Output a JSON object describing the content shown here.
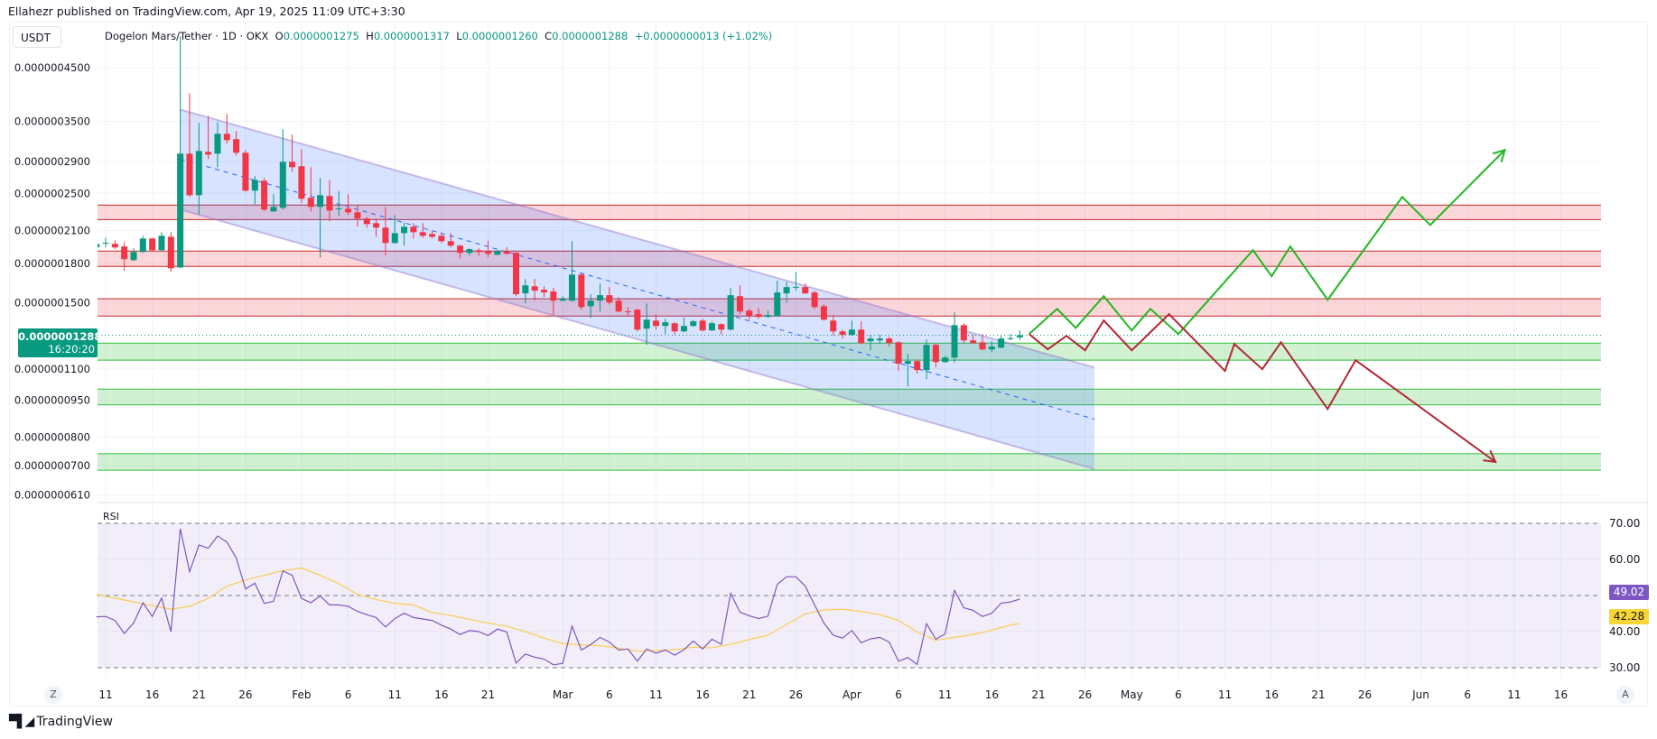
{
  "header": {
    "published": "Ellahezr published on TradingView.com, Apr 19, 2025 11:09 UTC+3:30"
  },
  "currency_button": "USDT",
  "legend": {
    "symbol": "Dogelon Mars/Tether · 1D · OKX",
    "open_label": "O",
    "open": "0.0000001275",
    "high_label": "H",
    "high": "0.0000001317",
    "low_label": "L",
    "low": "0.0000001260",
    "close_label": "C",
    "close": "0.0000001288",
    "change": "+0.0000000013 (+1.02%)"
  },
  "last_price": {
    "value": "0.0000001288",
    "countdown": "16:20:20"
  },
  "rsi": {
    "label": "RSI",
    "value_badge": "49.02",
    "ma_badge": "42.28"
  },
  "buttons": {
    "zoom_left": "Z",
    "auto_scale": "A"
  },
  "logo": "TradingView",
  "colors": {
    "up": "#089981",
    "down": "#f23645",
    "rsi": "#7e57c2",
    "rsi_ma": "#f7d05e",
    "bull_path": "#22b822",
    "bear_path": "#b22833",
    "resistance": "#c62828",
    "support": "#2fbf3a",
    "channel": "#2962ff"
  },
  "chart_data": {
    "type": "candlestick",
    "price_unit": "1e-10 USDT",
    "x_unit": "days since Jan 11 2025",
    "price_ticks": [
      {
        "v": 4500,
        "label": "0.0000004500"
      },
      {
        "v": 3500,
        "label": "0.0000003500"
      },
      {
        "v": 2900,
        "label": "0.0000002900"
      },
      {
        "v": 2500,
        "label": "0.0000002500"
      },
      {
        "v": 2100,
        "label": "0.0000002100"
      },
      {
        "v": 1800,
        "label": "0.0000001800"
      },
      {
        "v": 1500,
        "label": "0.0000001500"
      },
      {
        "v": 1100,
        "label": "0.0000001100"
      },
      {
        "v": 950,
        "label": "0.0000000950"
      },
      {
        "v": 800,
        "label": "0.0000000800"
      },
      {
        "v": 700,
        "label": "0.0000000700"
      },
      {
        "v": 610,
        "label": "0.0000000610"
      }
    ],
    "time_ticks": [
      {
        "d": 0,
        "label": "11"
      },
      {
        "d": 5,
        "label": "16"
      },
      {
        "d": 10,
        "label": "21"
      },
      {
        "d": 15,
        "label": "26"
      },
      {
        "d": 21,
        "label": "Feb"
      },
      {
        "d": 26,
        "label": "6"
      },
      {
        "d": 31,
        "label": "11"
      },
      {
        "d": 36,
        "label": "16"
      },
      {
        "d": 41,
        "label": "21"
      },
      {
        "d": 49,
        "label": "Mar"
      },
      {
        "d": 54,
        "label": "6"
      },
      {
        "d": 59,
        "label": "11"
      },
      {
        "d": 64,
        "label": "16"
      },
      {
        "d": 69,
        "label": "21"
      },
      {
        "d": 74,
        "label": "26"
      },
      {
        "d": 80,
        "label": "Apr"
      },
      {
        "d": 85,
        "label": "6"
      },
      {
        "d": 90,
        "label": "11"
      },
      {
        "d": 95,
        "label": "16"
      },
      {
        "d": 100,
        "label": "21"
      },
      {
        "d": 105,
        "label": "26"
      },
      {
        "d": 110,
        "label": "May"
      },
      {
        "d": 115,
        "label": "6"
      },
      {
        "d": 120,
        "label": "11"
      },
      {
        "d": 125,
        "label": "16"
      },
      {
        "d": 130,
        "label": "21"
      },
      {
        "d": 135,
        "label": "26"
      },
      {
        "d": 141,
        "label": "Jun"
      },
      {
        "d": 146,
        "label": "6"
      },
      {
        "d": 151,
        "label": "11"
      },
      {
        "d": 156,
        "label": "16"
      }
    ],
    "first_candle_day": -1,
    "candles_ohlc": [
      [
        1942,
        1990,
        1926,
        1974
      ],
      [
        1980,
        2033,
        1942,
        1985
      ],
      [
        1974,
        2006,
        1926,
        1942
      ],
      [
        1950,
        1990,
        1739,
        1838
      ],
      [
        1830,
        1933,
        1822,
        1901
      ],
      [
        1901,
        2050,
        1893,
        2024
      ],
      [
        2024,
        2033,
        1909,
        1917
      ],
      [
        1917,
        2085,
        1909,
        2050
      ],
      [
        2041,
        2085,
        1732,
        1761
      ],
      [
        1768,
        5215,
        1761,
        3010
      ],
      [
        3010,
        3993,
        2458,
        2479
      ],
      [
        2479,
        3474,
        2268,
        3048
      ],
      [
        3035,
        3593,
        2934,
        2997
      ],
      [
        3010,
        3489,
        2826,
        3303
      ],
      [
        3303,
        3624,
        3153,
        3207
      ],
      [
        3221,
        3345,
        2984,
        3023
      ],
      [
        3023,
        3061,
        2521,
        2532
      ],
      [
        2532,
        2709,
        2375,
        2663
      ],
      [
        2652,
        2686,
        2298,
        2318
      ],
      [
        2298,
        2490,
        2290,
        2347
      ],
      [
        2337,
        3374,
        2318,
        2898
      ],
      [
        2898,
        3289,
        2767,
        2826
      ],
      [
        2838,
        3074,
        2388,
        2438
      ],
      [
        2448,
        2826,
        2298,
        2347
      ],
      [
        2347,
        2686,
        1853,
        2479
      ],
      [
        2469,
        2663,
        2194,
        2308
      ],
      [
        2320,
        2532,
        2250,
        2330
      ],
      [
        2327,
        2490,
        2259,
        2288
      ],
      [
        2288,
        2368,
        2139,
        2222
      ],
      [
        2222,
        2240,
        2130,
        2166
      ],
      [
        2175,
        2222,
        2041,
        2130
      ],
      [
        2130,
        2347,
        1869,
        1982
      ],
      [
        1982,
        2259,
        1975,
        2076
      ],
      [
        2076,
        2184,
        1958,
        2139
      ],
      [
        2139,
        2175,
        2024,
        2085
      ],
      [
        2085,
        2175,
        2033,
        2050
      ],
      [
        2067,
        2094,
        2024,
        2041
      ],
      [
        2050,
        2085,
        1982,
        1999
      ],
      [
        1999,
        2076,
        1942,
        1958
      ],
      [
        1958,
        1966,
        1845,
        1893
      ],
      [
        1893,
        1933,
        1869,
        1926
      ],
      [
        1917,
        1933,
        1869,
        1901
      ],
      [
        1909,
        2006,
        1853,
        1885
      ],
      [
        1877,
        1917,
        1870,
        1909
      ],
      [
        1909,
        1942,
        1877,
        1885
      ],
      [
        1893,
        1901,
        1546,
        1560
      ],
      [
        1566,
        1675,
        1494,
        1626
      ],
      [
        1619,
        1675,
        1514,
        1586
      ],
      [
        1593,
        1619,
        1540,
        1573
      ],
      [
        1580,
        1606,
        1415,
        1514
      ],
      [
        1514,
        1546,
        1508,
        1527
      ],
      [
        1514,
        1999,
        1508,
        1710
      ],
      [
        1710,
        1717,
        1451,
        1469
      ],
      [
        1475,
        1560,
        1397,
        1514
      ],
      [
        1514,
        1640,
        1439,
        1553
      ],
      [
        1553,
        1613,
        1488,
        1501
      ],
      [
        1514,
        1540,
        1433,
        1439
      ],
      [
        1440,
        1469,
        1409,
        1438
      ],
      [
        1451,
        1457,
        1311,
        1322
      ],
      [
        1328,
        1494,
        1231,
        1385
      ],
      [
        1379,
        1421,
        1322,
        1345
      ],
      [
        1345,
        1391,
        1295,
        1368
      ],
      [
        1362,
        1368,
        1290,
        1311
      ],
      [
        1311,
        1397,
        1306,
        1345
      ],
      [
        1345,
        1385,
        1339,
        1374
      ],
      [
        1379,
        1391,
        1311,
        1317
      ],
      [
        1317,
        1374,
        1312,
        1362
      ],
      [
        1356,
        1362,
        1290,
        1322
      ],
      [
        1322,
        1606,
        1318,
        1553
      ],
      [
        1546,
        1626,
        1421,
        1439
      ],
      [
        1445,
        1457,
        1385,
        1409
      ],
      [
        1421,
        1463,
        1391,
        1403
      ],
      [
        1403,
        1445,
        1397,
        1415
      ],
      [
        1409,
        1661,
        1405,
        1573
      ],
      [
        1566,
        1654,
        1501,
        1613
      ],
      [
        1610,
        1732,
        1586,
        1615
      ],
      [
        1613,
        1640,
        1562,
        1566
      ],
      [
        1573,
        1586,
        1457,
        1469
      ],
      [
        1475,
        1488,
        1379,
        1385
      ],
      [
        1379,
        1415,
        1285,
        1311
      ],
      [
        1311,
        1322,
        1268,
        1290
      ],
      [
        1290,
        1379,
        1286,
        1322
      ],
      [
        1322,
        1374,
        1236,
        1241
      ],
      [
        1252,
        1290,
        1200,
        1268
      ],
      [
        1257,
        1290,
        1236,
        1268
      ],
      [
        1268,
        1279,
        1221,
        1241
      ],
      [
        1246,
        1252,
        1089,
        1127
      ],
      [
        1127,
        1180,
        1014,
        1141
      ],
      [
        1141,
        1151,
        1076,
        1094
      ],
      [
        1094,
        1263,
        1049,
        1231
      ],
      [
        1231,
        1241,
        1108,
        1136
      ],
      [
        1136,
        1170,
        1132,
        1160
      ],
      [
        1160,
        1433,
        1134,
        1350
      ],
      [
        1350,
        1362,
        1241,
        1257
      ],
      [
        1257,
        1290,
        1236,
        1241
      ],
      [
        1246,
        1295,
        1200,
        1205
      ],
      [
        1205,
        1252,
        1190,
        1221
      ],
      [
        1215,
        1284,
        1212,
        1268
      ],
      [
        1268,
        1295,
        1257,
        1270
      ],
      [
        1275,
        1317,
        1260,
        1288
      ]
    ],
    "last_close": 1288,
    "resistance_zones": [
      [
        2212,
        2367
      ],
      [
        1777,
        1909
      ],
      [
        1409,
        1527
      ]
    ],
    "support_zones": [
      [
        1146,
        1241
      ],
      [
        930,
        1001
      ],
      [
        685,
        740
      ]
    ],
    "channel": {
      "start_day": 8,
      "end_day": 106,
      "upper": [
        3700,
        1108
      ],
      "middle": [
        2935,
        870
      ],
      "lower": [
        2318,
        689
      ]
    },
    "bullish_projection": [
      [
        99,
        1295
      ],
      [
        102,
        1457
      ],
      [
        104,
        1333
      ],
      [
        107,
        1546
      ],
      [
        110,
        1317
      ],
      [
        112,
        1457
      ],
      [
        115,
        1295
      ],
      [
        123,
        1917
      ],
      [
        125,
        1697
      ],
      [
        127,
        1950
      ],
      [
        131,
        1520
      ],
      [
        139,
        2458
      ],
      [
        142,
        2157
      ],
      [
        150,
        3062
      ]
    ],
    "bearish_projection": [
      [
        99,
        1295
      ],
      [
        101,
        1206
      ],
      [
        103,
        1284
      ],
      [
        105,
        1200
      ],
      [
        107,
        1380
      ],
      [
        110,
        1200
      ],
      [
        114,
        1421
      ],
      [
        120,
        1090
      ],
      [
        121,
        1236
      ],
      [
        124,
        1099
      ],
      [
        126,
        1246
      ],
      [
        131,
        912
      ],
      [
        134,
        1146
      ],
      [
        149,
        712
      ]
    ],
    "rsi": {
      "levels": [
        70,
        60,
        50,
        40,
        30
      ],
      "level_labels": [
        "70.00",
        "60.00",
        "50.00",
        "40.00",
        "30.00"
      ],
      "range": [
        30,
        70
      ],
      "values": [
        44.1,
        44.2,
        43.1,
        39.5,
        42.4,
        48.0,
        44.2,
        49.3,
        40.0,
        68.5,
        56.6,
        64.0,
        63.1,
        66.5,
        64.8,
        60.4,
        51.8,
        53.4,
        47.8,
        48.4,
        56.8,
        55.6,
        49.2,
        48.0,
        49.9,
        47.4,
        47.4,
        47.0,
        45.6,
        44.7,
        43.9,
        41.3,
        43.6,
        45.1,
        43.9,
        43.5,
        43.1,
        41.8,
        40.7,
        39.2,
        40.3,
        40.0,
        38.9,
        40.7,
        39.9,
        31.3,
        33.8,
        32.9,
        32.4,
        30.8,
        31.2,
        41.5,
        34.9,
        36.4,
        38.4,
        37.1,
        34.9,
        35.2,
        31.8,
        35.2,
        34.0,
        34.9,
        33.5,
        35.0,
        37.4,
        35.2,
        37.9,
        36.5,
        50.6,
        45.4,
        44.4,
        43.6,
        44.3,
        53.1,
        55.2,
        55.2,
        52.6,
        47.4,
        42.4,
        39.0,
        38.2,
        40.3,
        36.9,
        38.0,
        38.4,
        37.1,
        31.8,
        32.8,
        30.9,
        42.2,
        37.9,
        39.4,
        51.4,
        46.6,
        45.9,
        44.2,
        45.1,
        47.9,
        48.2,
        49.02
      ],
      "ma": [
        [
          -1,
          50.3
        ],
        [
          7,
          46.2
        ],
        [
          9,
          47.0
        ],
        [
          11,
          49.2
        ],
        [
          13,
          52.6
        ],
        [
          15,
          54.3
        ],
        [
          17,
          55.6
        ],
        [
          19,
          56.9
        ],
        [
          21,
          57.6
        ],
        [
          23,
          55.6
        ],
        [
          25,
          53.3
        ],
        [
          27,
          50.3
        ],
        [
          29,
          48.9
        ],
        [
          31,
          47.8
        ],
        [
          33,
          47.4
        ],
        [
          35,
          45.3
        ],
        [
          37,
          44.5
        ],
        [
          39,
          43.4
        ],
        [
          41,
          42.4
        ],
        [
          43,
          41.5
        ],
        [
          45,
          40.0
        ],
        [
          47,
          38.2
        ],
        [
          49,
          36.7
        ],
        [
          51,
          36.3
        ],
        [
          53,
          36.1
        ],
        [
          55,
          35.4
        ],
        [
          57,
          34.6
        ],
        [
          59,
          34.7
        ],
        [
          61,
          35.0
        ],
        [
          63,
          35.7
        ],
        [
          65,
          35.5
        ],
        [
          67,
          36.5
        ],
        [
          69,
          37.8
        ],
        [
          71,
          39.0
        ],
        [
          73,
          42.0
        ],
        [
          75,
          44.9
        ],
        [
          77,
          46.0
        ],
        [
          79,
          46.2
        ],
        [
          81,
          45.6
        ],
        [
          83,
          44.7
        ],
        [
          85,
          43.1
        ],
        [
          87,
          39.9
        ],
        [
          89,
          37.6
        ],
        [
          91,
          38.4
        ],
        [
          93,
          39.2
        ],
        [
          95,
          40.4
        ],
        [
          97,
          41.8
        ],
        [
          98,
          42.28
        ]
      ]
    }
  }
}
